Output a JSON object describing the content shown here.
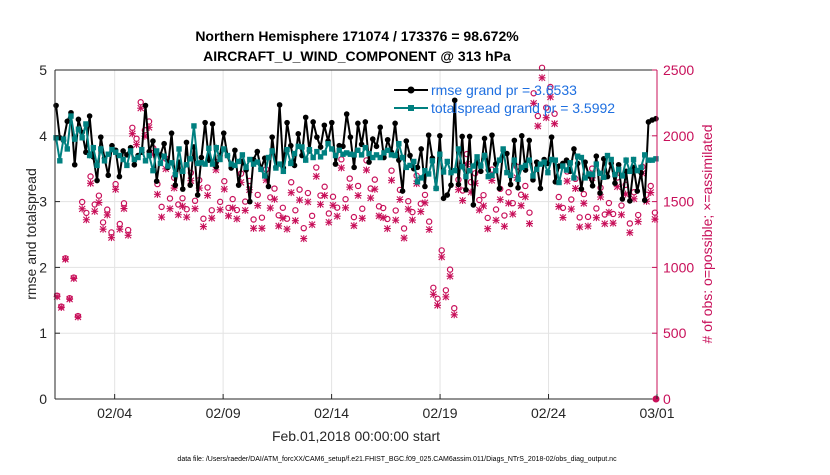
{
  "chart_data": {
    "type": "line",
    "title_line1": "Northern Hemisphere 171074 / 173376 = 98.672%",
    "title_line2": "AIRCRAFT_U_WIND_COMPONENT @ 313 hPa",
    "xlabel": "Feb.01,2018 00:00:00 start",
    "ylabel_left": "rmse and totalspread",
    "ylabel_right": "# of obs: o=possible; ×=assimilated",
    "x_ticks": [
      "02/04",
      "02/09",
      "02/14",
      "02/19",
      "02/24",
      "03/01"
    ],
    "x_tick_days": [
      3,
      8,
      13,
      18,
      23,
      28
    ],
    "xlim": [
      0.25,
      28.0
    ],
    "ylim_left": [
      0,
      5
    ],
    "y_ticks_left": [
      "0",
      "1",
      "2",
      "3",
      "4",
      "5"
    ],
    "ylim_right": [
      0,
      2500
    ],
    "y_ticks_right": [
      "0",
      "500",
      "1000",
      "1500",
      "2000",
      "2500"
    ],
    "footer": "data file: /Users/raeder/DAI/ATM_forcXX/CAM6_setup/f.e21.FHIST_BGC.f09_025.CAM6assim.011/Diags_NTrS_2018-02/obs_diag_output.nc",
    "colors": {
      "rmse": "#000000",
      "spread": "#008080",
      "obs": "#c8105a",
      "legend_text": "#1e6fe0"
    },
    "series": [
      {
        "name": "rmse grand pr = 3.6533",
        "key": "rmse",
        "values": [
          4.46,
          3.97,
          3.93,
          4.22,
          4.35,
          3.56,
          4.25,
          4.05,
          3.75,
          4.3,
          3.68,
          3.32,
          3.98,
          3.66,
          3.4,
          3.85,
          3.78,
          3.38,
          3.77,
          3.71,
          3.82,
          3.56,
          3.7,
          3.75,
          4.46,
          3.76,
          3.92,
          3.31,
          3.71,
          3.88,
          3.52,
          4.04,
          3.25,
          3.6,
          3.19,
          3.9,
          3.25,
          3.83,
          3.1,
          3.67,
          4.2,
          3.63,
          4.18,
          3.53,
          3.7,
          4.04,
          3.7,
          3.51,
          3.78,
          3.25,
          3.61,
          3.48,
          3.0,
          3.64,
          3.76,
          3.5,
          3.66,
          3.23,
          3.98,
          3.52,
          4.47,
          3.51,
          4.2,
          3.85,
          3.55,
          4.03,
          3.7,
          4.28,
          3.77,
          4.21,
          3.98,
          3.83,
          4.16,
          3.92,
          4.2,
          3.57,
          3.85,
          3.84,
          4.33,
          3.98,
          3.52,
          4.19,
          3.87,
          4.21,
          3.6,
          3.95,
          3.84,
          4.13,
          3.67,
          3.94,
          3.75,
          4.19,
          3.63,
          3.16,
          3.92,
          3.7,
          3.5,
          3.52,
          3.8,
          3.23,
          4.01,
          3.66,
          3.2,
          4.0,
          3.05,
          3.1,
          3.25,
          4.54,
          3.26,
          3.99,
          3.18,
          3.99,
          2.95,
          3.63,
          3.46,
          3.96,
          3.48,
          4.01,
          3.57,
          3.2,
          3.78,
          3.73,
          3.26,
          3.93,
          3.21,
          4.0,
          3.48,
          3.93,
          3.33,
          3.6,
          3.2,
          3.64,
          3.58,
          3.98,
          3.3,
          3.54,
          3.58,
          3.63,
          3.46,
          3.8,
          3.58,
          3.19,
          3.6,
          3.39,
          3.24,
          3.69,
          3.13,
          3.65,
          3.38,
          3.58,
          3.28,
          3.56,
          3.04,
          3.46,
          3.01,
          3.52,
          3.16,
          3.44,
          3.02,
          4.21,
          4.24,
          4.26
        ]
      },
      {
        "name": "totalspread grand pr = 3.5992",
        "key": "spread",
        "values": [
          3.97,
          3.62,
          3.95,
          3.8,
          4.3,
          3.95,
          4.1,
          3.97,
          4.18,
          3.7,
          3.82,
          3.55,
          3.8,
          3.62,
          3.72,
          3.79,
          3.75,
          3.7,
          3.64,
          3.55,
          3.77,
          3.64,
          3.67,
          3.79,
          3.62,
          3.7,
          3.47,
          3.77,
          3.58,
          3.69,
          3.54,
          3.59,
          3.41,
          3.8,
          3.46,
          3.56,
          3.65,
          4.15,
          3.58,
          3.59,
          3.57,
          3.81,
          3.57,
          3.82,
          3.64,
          3.8,
          3.7,
          3.57,
          3.55,
          3.61,
          3.71,
          3.52,
          3.64,
          3.57,
          3.6,
          3.49,
          3.39,
          3.67,
          3.77,
          3.51,
          3.57,
          3.46,
          3.79,
          3.58,
          3.73,
          3.84,
          3.83,
          3.63,
          3.79,
          3.67,
          3.76,
          3.68,
          3.74,
          3.88,
          3.8,
          3.7,
          3.78,
          3.72,
          3.74,
          3.72,
          3.71,
          3.78,
          3.71,
          3.82,
          3.73,
          3.67,
          3.71,
          3.67,
          3.74,
          3.78,
          3.71,
          3.7,
          3.88,
          3.67,
          3.52,
          3.55,
          3.61,
          3.3,
          3.36,
          3.47,
          3.42,
          3.62,
          3.2,
          3.72,
          3.45,
          3.61,
          3.44,
          3.47,
          3.8,
          3.53,
          3.38,
          3.47,
          3.54,
          3.68,
          3.54,
          3.7,
          3.38,
          3.4,
          3.47,
          3.63,
          3.8,
          3.44,
          3.4,
          3.63,
          3.34,
          3.52,
          3.55,
          3.63,
          3.39,
          3.49,
          3.57,
          3.6,
          3.44,
          3.64,
          3.63,
          3.29,
          3.54,
          3.48,
          3.59,
          3.36,
          3.69,
          3.67,
          3.36,
          3.42,
          3.41,
          3.57,
          3.43,
          3.37,
          3.7,
          3.64,
          3.41,
          3.49,
          3.39,
          3.63,
          3.46,
          3.64,
          3.47,
          3.52,
          3.71,
          3.63,
          3.63,
          3.65
        ]
      }
    ],
    "obs_possible": [
      830,
      1500,
      1400,
      2070,
      1600,
      1540,
      1580,
      1540,
      1530,
      1480,
      1550,
      1570,
      1610,
      1490,
      1500,
      890,
      1670,
      1510,
      1580,
      2290,
      1550,
      1530,
      1510,
      1550
    ],
    "obs_assimilated": [
      823,
      1448,
      1360,
      2025,
      1522,
      1480,
      1520,
      1473,
      1449,
      1401,
      1483,
      1505,
      1537,
      1417,
      1440,
      840,
      1594,
      1428,
      1497,
      2214,
      1477,
      1460,
      1440,
      1500
    ]
  }
}
